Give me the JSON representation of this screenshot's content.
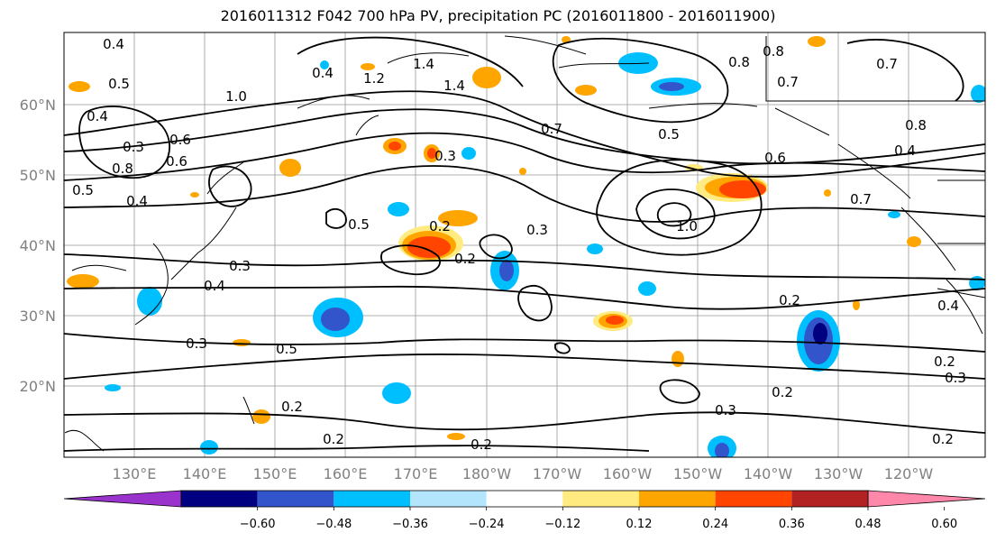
{
  "title": "2016011312 F042 700 hPa PV, precipitation PC (2016011800 - 2016011900)",
  "lat_labels": [
    "60°N",
    "50°N",
    "40°N",
    "30°N",
    "20°N"
  ],
  "lon_labels": [
    "130°E",
    "140°E",
    "150°E",
    "160°E",
    "170°E",
    "180°W",
    "170°W",
    "160°W",
    "150°W",
    "140°W",
    "130°W",
    "120°W"
  ],
  "colorbar": {
    "ticks": [
      "−0.60",
      "−0.48",
      "−0.36",
      "−0.24",
      "−0.12",
      "0.12",
      "0.24",
      "0.36",
      "0.48",
      "0.60"
    ],
    "colors": [
      "#9933cc",
      "#000080",
      "#3355cc",
      "#00bfff",
      "#b3e5fc",
      "#ffffff",
      "#ffeb80",
      "#ffa500",
      "#ff4500",
      "#b22222",
      "#ff88aa"
    ]
  },
  "contour_labels": [
    "0.4",
    "0.5",
    "0.4",
    "0.3",
    "0.8",
    "0.4",
    "0.5",
    "0.6",
    "1.0",
    "1.4",
    "1.2",
    "1.4",
    "0.6",
    "0.4",
    "0.7",
    "0.5",
    "0.8",
    "0.6",
    "1.0",
    "0.7",
    "0.8",
    "0.7",
    "0.8",
    "0.4",
    "0.7",
    "0.5",
    "0.3",
    "0.2",
    "0.3",
    "0.4",
    "0.3",
    "0.2",
    "0.3",
    "0.5",
    "0.2",
    "0.2",
    "0.2",
    "0.2",
    "0.3",
    "0.2",
    "0.2",
    "0.3",
    "0.2",
    "0.4"
  ]
}
